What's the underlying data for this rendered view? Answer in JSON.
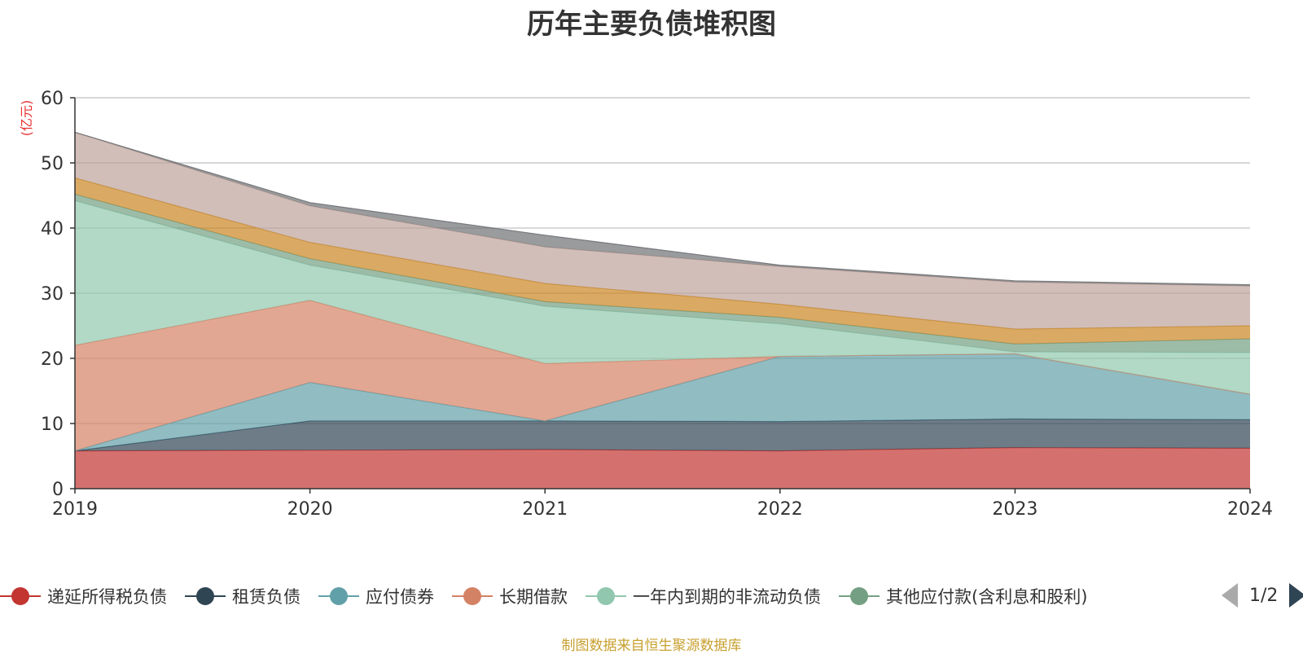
{
  "title": "历年主要负债堆积图",
  "source_note": "制图数据来自恒生聚源数据库",
  "pager": {
    "text": "1/2"
  },
  "chart_data": {
    "type": "area",
    "stacked": true,
    "title": "历年主要负债堆积图",
    "unit_label": "(亿元)",
    "x": [
      "2019",
      "2020",
      "2021",
      "2022",
      "2023",
      "2024"
    ],
    "ylim": [
      0,
      60
    ],
    "yticks": [
      0,
      10,
      20,
      30,
      40,
      50,
      60
    ],
    "grid": true,
    "legend_position": "bottom",
    "series": [
      {
        "name": "递延所得税负债",
        "color": "#c23531",
        "values": [
          5.8,
          5.9,
          6.0,
          5.8,
          6.3,
          6.2
        ]
      },
      {
        "name": "租赁负债",
        "color": "#2f4554",
        "values": [
          0.0,
          4.5,
          4.4,
          4.5,
          4.4,
          4.4
        ]
      },
      {
        "name": "应付债券",
        "color": "#61a0a8",
        "values": [
          0.0,
          5.9,
          0.0,
          10.0,
          10.0,
          3.9
        ]
      },
      {
        "name": "长期借款",
        "color": "#d48265",
        "values": [
          16.2,
          12.6,
          8.8,
          0.0,
          0.0,
          0.0
        ]
      },
      {
        "name": "一年内到期的非流动负债",
        "color": "#91c7ae",
        "values": [
          22.2,
          5.4,
          8.8,
          5.0,
          0.3,
          6.4
        ]
      },
      {
        "name": "其他应付款(含利息和股利)",
        "color": "#749f83",
        "values": [
          1.0,
          1.0,
          0.7,
          1.0,
          1.2,
          2.1
        ]
      },
      {
        "name": "",
        "color": "#ca8622",
        "values": [
          2.5,
          2.5,
          2.8,
          2.0,
          2.3,
          2.0
        ]
      },
      {
        "name": "",
        "color": "#bda29a",
        "values": [
          7.0,
          5.6,
          5.6,
          5.8,
          7.2,
          6.1
        ]
      },
      {
        "name": "",
        "color": "#6e7074",
        "values": [
          0.0,
          0.5,
          1.8,
          0.2,
          0.2,
          0.2
        ]
      }
    ],
    "legend_visible_count": 6
  }
}
